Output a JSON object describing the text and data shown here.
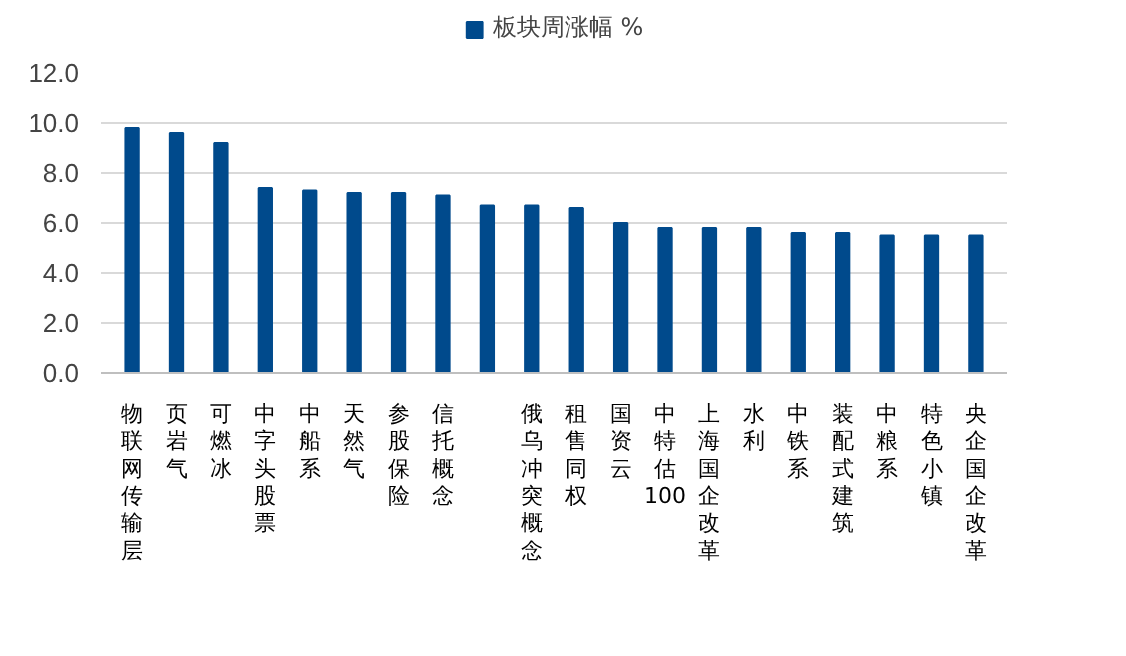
{
  "chart_data": {
    "type": "bar",
    "categories": [
      "物联网传输层",
      "页岩气",
      "可燃冰",
      "中字头股票",
      "中船系",
      "天然气",
      "参股保险",
      "信托概念",
      null,
      "俄乌冲突概念",
      "租售同权",
      "国资云",
      "中特估100",
      "上海国企改革",
      "水利",
      "中铁系",
      "装配式建筑",
      "中粮系",
      "特色小镇",
      "央企国企改革"
    ],
    "series": [
      {
        "name": "板块周涨幅 %",
        "color": "#004a8c",
        "values": [
          9.8,
          9.6,
          9.2,
          7.4,
          7.3,
          7.2,
          7.2,
          7.1,
          6.7,
          6.7,
          6.6,
          6.0,
          5.8,
          5.8,
          5.8,
          5.6,
          5.6,
          5.5,
          5.5,
          5.5
        ]
      }
    ],
    "ylim": [
      0,
      12
    ],
    "yticks": [
      {
        "value": 0,
        "label": "0.0"
      },
      {
        "value": 2,
        "label": "2.0"
      },
      {
        "value": 4,
        "label": "4.0"
      },
      {
        "value": 6,
        "label": "6.0"
      },
      {
        "value": 8,
        "label": "8.0"
      },
      {
        "value": 10,
        "label": "10.0"
      },
      {
        "value": 12,
        "label": "12.0"
      }
    ],
    "grid": "y",
    "legend": "top"
  }
}
